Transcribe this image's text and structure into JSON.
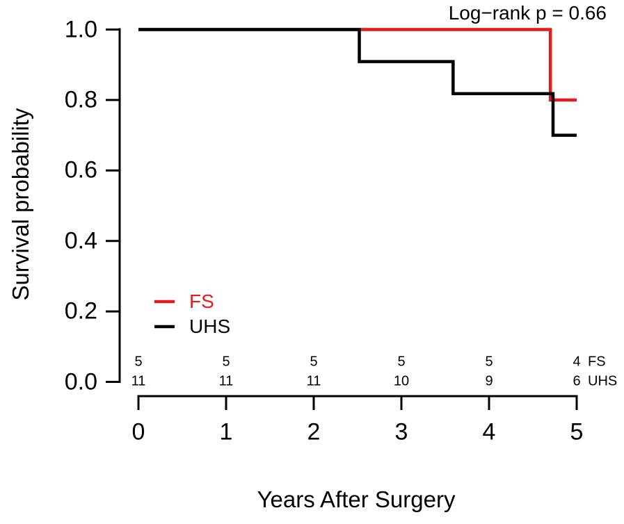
{
  "chart_data": {
    "type": "line",
    "subtype": "kaplan-meier-step-curves",
    "title": "",
    "annotation": "Log−rank p = 0.66",
    "xlabel": "Years After Surgery",
    "ylabel": "Survival probability",
    "xlim": [
      0,
      5
    ],
    "ylim": [
      0.0,
      1.0
    ],
    "grid": false,
    "x_ticks": [
      {
        "value": 0,
        "label": "0"
      },
      {
        "value": 1,
        "label": "1"
      },
      {
        "value": 2,
        "label": "2"
      },
      {
        "value": 3,
        "label": "3"
      },
      {
        "value": 4,
        "label": "4"
      },
      {
        "value": 5,
        "label": "5"
      }
    ],
    "y_ticks": [
      {
        "value": 1.0,
        "label": "1.0"
      },
      {
        "value": 0.8,
        "label": "0.8"
      },
      {
        "value": 0.6,
        "label": "0.6"
      },
      {
        "value": 0.4,
        "label": "0.4"
      },
      {
        "value": 0.2,
        "label": "0.2"
      },
      {
        "value": 0.0,
        "label": "0.0"
      }
    ],
    "series": [
      {
        "name": "FS",
        "color": "#E41A1C",
        "steps": [
          [
            0,
            1.0
          ],
          [
            4.7,
            1.0
          ],
          [
            4.7,
            0.8
          ],
          [
            5.0,
            0.8
          ]
        ]
      },
      {
        "name": "UHS",
        "color": "#000000",
        "steps": [
          [
            0,
            1.0
          ],
          [
            2.52,
            1.0
          ],
          [
            2.52,
            0.909
          ],
          [
            3.59,
            0.909
          ],
          [
            3.59,
            0.818
          ],
          [
            4.73,
            0.818
          ],
          [
            4.73,
            0.7
          ],
          [
            5.0,
            0.7
          ]
        ]
      }
    ],
    "legend": {
      "position": "lower-left-inside",
      "items": [
        {
          "label": "FS",
          "color": "#E41A1C"
        },
        {
          "label": "UHS",
          "color": "#000000"
        }
      ]
    },
    "risk_table": {
      "times": [
        0,
        1,
        2,
        3,
        4,
        5
      ],
      "rows": [
        {
          "label": "FS",
          "counts": [
            "5",
            "5",
            "5",
            "5",
            "5",
            "4"
          ]
        },
        {
          "label": "UHS",
          "counts": [
            "11",
            "11",
            "11",
            "10",
            "9",
            "6"
          ]
        }
      ]
    },
    "colors": {
      "accent_red": "#E41A1C",
      "axis": "#000000",
      "background": "#ffffff"
    }
  }
}
